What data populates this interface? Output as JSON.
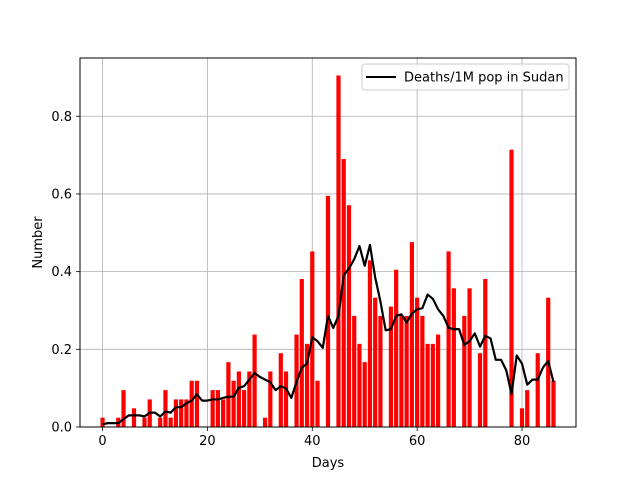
{
  "chart_data": {
    "type": "bar",
    "xlabel": "Days",
    "ylabel": "Number",
    "xlim": [
      -4.3,
      90.3
    ],
    "ylim": [
      0,
      0.95
    ],
    "xticks": [
      0,
      20,
      40,
      60,
      80
    ],
    "yticks": [
      0.0,
      0.2,
      0.4,
      0.6,
      0.8
    ],
    "xtick_labels": [
      "0",
      "20",
      "40",
      "60",
      "80"
    ],
    "ytick_labels": [
      "0.0",
      "0.2",
      "0.4",
      "0.6",
      "0.8"
    ],
    "grid": true,
    "legend_position": "top-right",
    "bar_color": "#ff0000",
    "line_color": "#000000",
    "series": [
      {
        "type": "bar",
        "x": [
          0,
          1,
          2,
          3,
          4,
          5,
          6,
          7,
          8,
          9,
          10,
          11,
          12,
          13,
          14,
          15,
          16,
          17,
          18,
          19,
          20,
          21,
          22,
          23,
          24,
          25,
          26,
          27,
          28,
          29,
          30,
          31,
          32,
          33,
          34,
          35,
          36,
          37,
          38,
          39,
          40,
          41,
          42,
          43,
          44,
          45,
          46,
          47,
          48,
          49,
          50,
          51,
          52,
          53,
          54,
          55,
          56,
          57,
          58,
          59,
          60,
          61,
          62,
          63,
          64,
          65,
          66,
          67,
          68,
          69,
          70,
          71,
          72,
          73,
          74,
          75,
          76,
          77,
          78,
          79,
          80,
          81,
          82,
          83,
          84,
          85,
          86
        ],
        "values": [
          0.024,
          0.0,
          0.0,
          0.024,
          0.095,
          0.0,
          0.048,
          0.0,
          0.024,
          0.071,
          0.0,
          0.024,
          0.095,
          0.024,
          0.071,
          0.071,
          0.071,
          0.119,
          0.119,
          0.0,
          0.0,
          0.095,
          0.095,
          0.071,
          0.167,
          0.119,
          0.143,
          0.095,
          0.143,
          0.238,
          0.0,
          0.024,
          0.143,
          0.0,
          0.19,
          0.143,
          0.0,
          0.238,
          0.381,
          0.214,
          0.452,
          0.119,
          0.0,
          0.595,
          0.0,
          0.905,
          0.69,
          0.571,
          0.286,
          0.214,
          0.167,
          0.429,
          0.333,
          0.286,
          0.0,
          0.31,
          0.405,
          0.286,
          0.286,
          0.476,
          0.333,
          0.286,
          0.214,
          0.214,
          0.238,
          0.0,
          0.452,
          0.357,
          0.0,
          0.286,
          0.357,
          0.0,
          0.19,
          0.381,
          0.0,
          0.0,
          0.0,
          0.0,
          0.714,
          0.0,
          0.048,
          0.095,
          0.0,
          0.19,
          0.0,
          0.333,
          0.119
        ]
      },
      {
        "type": "line",
        "name": "Deaths/1M pop in Sudan",
        "x": [
          0,
          1,
          2,
          3,
          4,
          5,
          6,
          7,
          8,
          9,
          10,
          11,
          12,
          13,
          14,
          15,
          16,
          17,
          18,
          19,
          20,
          21,
          22,
          23,
          24,
          25,
          26,
          27,
          28,
          29,
          30,
          31,
          32,
          33,
          34,
          35,
          36,
          37,
          38,
          39,
          40,
          41,
          42,
          43,
          44,
          45,
          46,
          47,
          48,
          49,
          50,
          51,
          52,
          53,
          54,
          55,
          56,
          57,
          58,
          59,
          60,
          61,
          62,
          63,
          64,
          65,
          66,
          67,
          68,
          69,
          70,
          71,
          72,
          73,
          74,
          75,
          76,
          77,
          78,
          79,
          80,
          81,
          82,
          83,
          84,
          85,
          86
        ],
        "values": [
          0.007,
          0.01,
          0.01,
          0.01,
          0.02,
          0.03,
          0.03,
          0.03,
          0.027,
          0.037,
          0.037,
          0.027,
          0.04,
          0.037,
          0.051,
          0.051,
          0.061,
          0.068,
          0.084,
          0.068,
          0.068,
          0.071,
          0.071,
          0.075,
          0.078,
          0.078,
          0.101,
          0.105,
          0.122,
          0.139,
          0.129,
          0.122,
          0.115,
          0.095,
          0.105,
          0.099,
          0.075,
          0.116,
          0.153,
          0.163,
          0.231,
          0.221,
          0.204,
          0.286,
          0.255,
          0.286,
          0.391,
          0.408,
          0.432,
          0.466,
          0.415,
          0.469,
          0.385,
          0.323,
          0.249,
          0.252,
          0.286,
          0.29,
          0.269,
          0.292,
          0.303,
          0.306,
          0.341,
          0.33,
          0.303,
          0.286,
          0.255,
          0.252,
          0.252,
          0.211,
          0.221,
          0.241,
          0.207,
          0.235,
          0.228,
          0.173,
          0.173,
          0.146,
          0.085,
          0.184,
          0.163,
          0.109,
          0.122,
          0.122,
          0.153,
          0.17,
          0.116
        ]
      }
    ]
  }
}
